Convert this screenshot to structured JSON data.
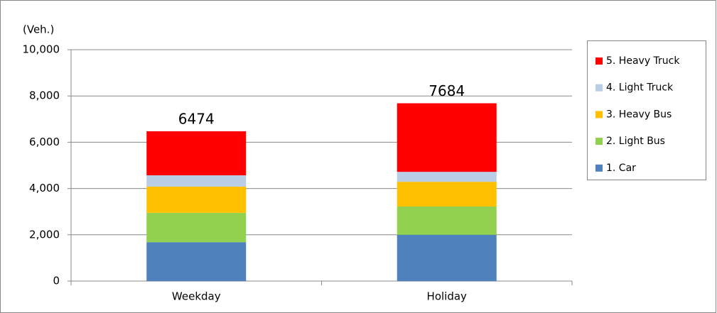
{
  "chart_data": {
    "type": "stacked_bar",
    "y_label": "(Veh.)",
    "categories": [
      "Weekday",
      "Holiday"
    ],
    "series": [
      {
        "name": "1. Car",
        "color": "#4f81bd",
        "values": [
          1680,
          2000
        ]
      },
      {
        "name": "2. Light Bus",
        "color": "#92d050",
        "values": [
          1270,
          1220
        ]
      },
      {
        "name": "3. Heavy Bus",
        "color": "#ffc000",
        "values": [
          1130,
          1070
        ]
      },
      {
        "name": "4. Light Truck",
        "color": "#b9cde5",
        "values": [
          490,
          430
        ]
      },
      {
        "name": "5. Heavy Truck",
        "color": "#ff0000",
        "values": [
          1904,
          2964
        ]
      }
    ],
    "totals": [
      6474,
      7684
    ],
    "ylim": [
      0,
      10000
    ],
    "yticks": [
      {
        "value": 0,
        "label": "0"
      },
      {
        "value": 2000,
        "label": "2,000"
      },
      {
        "value": 4000,
        "label": "4,000"
      },
      {
        "value": 6000,
        "label": "6,000"
      },
      {
        "value": 8000,
        "label": "8,000"
      },
      {
        "value": 10000,
        "label": "10,000"
      }
    ],
    "grid": true,
    "legend": "right"
  }
}
